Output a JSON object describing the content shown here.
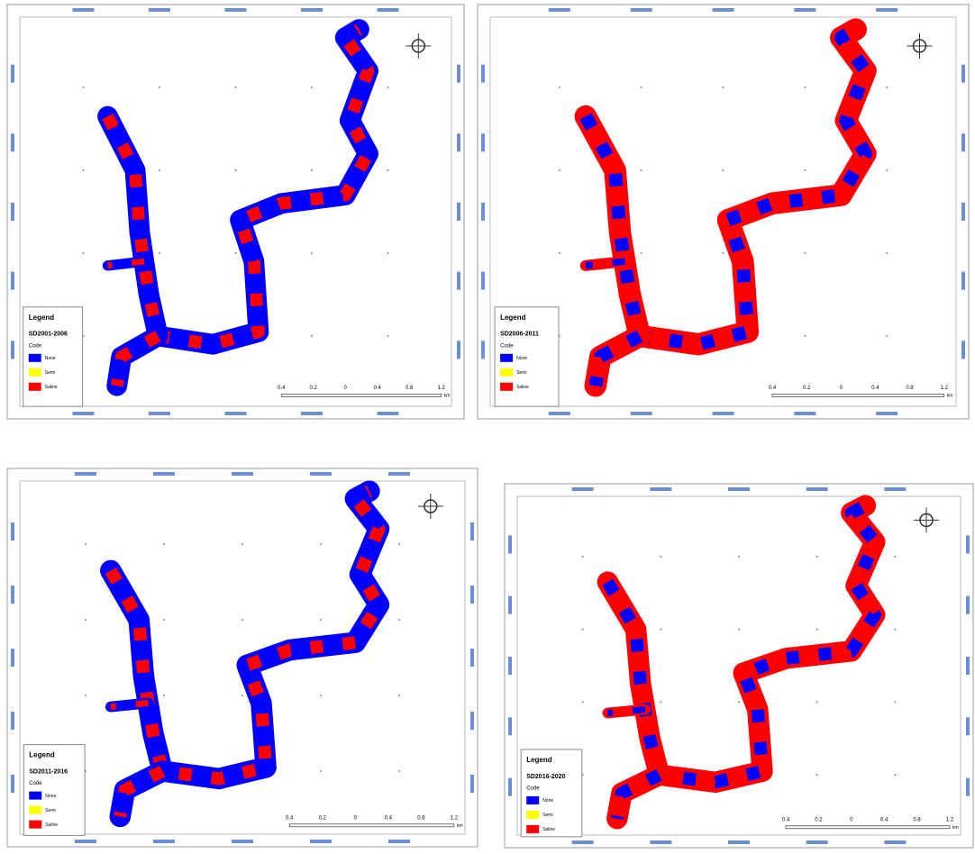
{
  "panels": [
    {
      "legend": {
        "title": "Legend",
        "period": "SD2001-2006",
        "field": "Code",
        "items": [
          {
            "label": "None",
            "color": "#0000ff"
          },
          {
            "label": "Semi",
            "color": "#ffff00"
          },
          {
            "label": "Saline",
            "color": "#ff0000"
          }
        ]
      },
      "scale": {
        "ticks": [
          "0.4",
          "0.2",
          "0",
          "0.4",
          "0.8",
          "1.2"
        ],
        "unit": "km"
      }
    },
    {
      "legend": {
        "title": "Legend",
        "period": "SD2006-2011",
        "field": "Code",
        "items": [
          {
            "label": "None",
            "color": "#0000ff"
          },
          {
            "label": "Semi",
            "color": "#ffff00"
          },
          {
            "label": "Saline",
            "color": "#ff0000"
          }
        ]
      },
      "scale": {
        "ticks": [
          "0.4",
          "0.2",
          "0",
          "0.4",
          "0.8",
          "1.2"
        ],
        "unit": "km"
      }
    },
    {
      "legend": {
        "title": "Legend",
        "period": "SD2011-2016",
        "field": "Code",
        "items": [
          {
            "label": "None",
            "color": "#0000ff"
          },
          {
            "label": "Semi",
            "color": "#ffff00"
          },
          {
            "label": "Saline",
            "color": "#ff0000"
          }
        ]
      },
      "scale": {
        "ticks": [
          "0.4",
          "0.2",
          "0",
          "0.4",
          "0.8",
          "1.2"
        ],
        "unit": "km"
      }
    },
    {
      "legend": {
        "title": "Legend",
        "period": "SD2016-2020",
        "field": "Code",
        "items": [
          {
            "label": "None",
            "color": "#0000ff"
          },
          {
            "label": "Semi",
            "color": "#ffff00"
          },
          {
            "label": "Saline",
            "color": "#ff0000"
          }
        ]
      },
      "scale": {
        "ticks": [
          "0.4",
          "0.2",
          "0",
          "0.4",
          "0.8",
          "1.2"
        ],
        "unit": "km"
      }
    }
  ]
}
